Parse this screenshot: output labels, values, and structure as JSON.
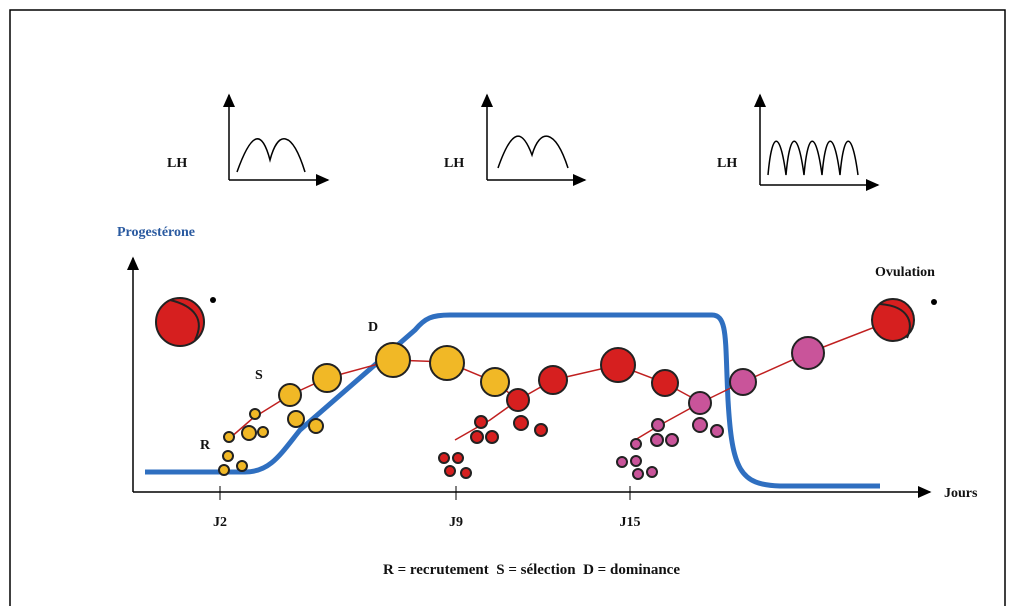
{
  "lh_panels": [
    {
      "label": "LH"
    },
    {
      "label": "LH"
    },
    {
      "label": "LH"
    }
  ],
  "axis": {
    "y_label": "Progestérone",
    "x_label": "Jours",
    "ticks": [
      "J2",
      "J9",
      "J15"
    ]
  },
  "annotations": {
    "ovulation": "Ovulation",
    "r": "R",
    "s": "S",
    "d": "D"
  },
  "legend": "R = recrutement  S = sélection  D = dominance"
}
